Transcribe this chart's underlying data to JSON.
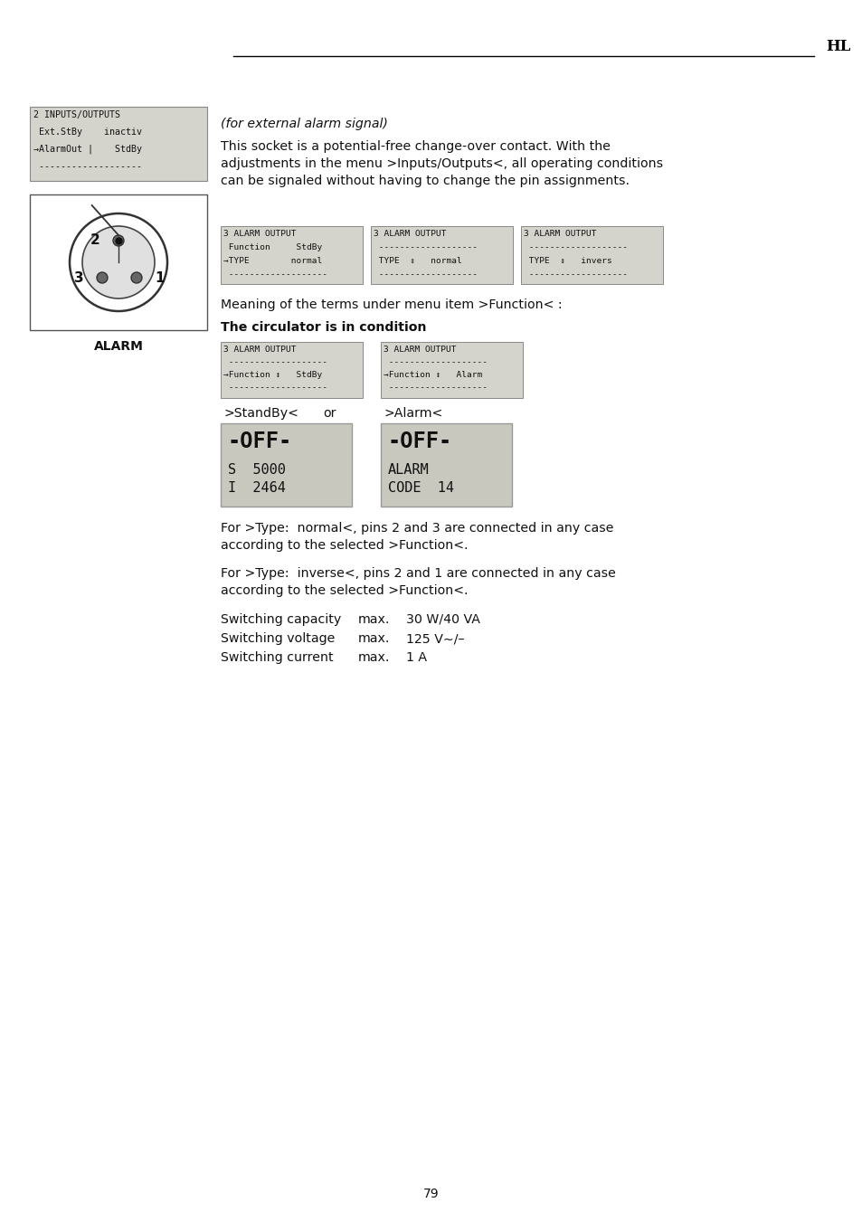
{
  "page_number": "79",
  "header_text": "HL",
  "lcd_box1_lines": [
    "2 INPUTS/OUTPUTS",
    " Ext.StBy    inactiv",
    "→AlarmOut |    StdBy",
    " -------------------"
  ],
  "alarm_label": "ALARM",
  "para_italic": "(for external alarm signal)",
  "para1_lines": [
    "This socket is a potential-free change-over contact. With the",
    "adjustments in the menu >Inputs/Outputs<, all operating conditions",
    "can be signaled without having to change the pin assignments."
  ],
  "alarm_output_boxes": [
    [
      "3 ALARM OUTPUT",
      " Function     StdBy",
      "→TYPE        normal",
      " -------------------"
    ],
    [
      "3 ALARM OUTPUT",
      " -------------------",
      " TYPE  ↕   normal",
      " -------------------"
    ],
    [
      "3 ALARM OUTPUT",
      " -------------------",
      " TYPE  ↕   invers",
      " -------------------"
    ]
  ],
  "meaning_text": "Meaning of the terms under menu item >Function< :",
  "condition_text": "The circulator is in condition",
  "condition_boxes": [
    [
      "3 ALARM OUTPUT",
      " -------------------",
      "→Function ↕   StdBy",
      " -------------------"
    ],
    [
      "3 ALARM OUTPUT",
      " -------------------",
      "→Function ↕   Alarm",
      " -------------------"
    ]
  ],
  "standby_label": ">StandBy<",
  "or_label": "or",
  "alarm_label2": ">Alarm<",
  "lcd_display1_lines": [
    "-OFF-",
    "S  5000",
    "I  2464"
  ],
  "lcd_display2_lines": [
    "-OFF-",
    "ALARM",
    "CODE  14"
  ],
  "para_type_normal_lines": [
    "For >Type:  normal<, pins 2 and 3 are connected in any case",
    "according to the selected >Function<."
  ],
  "para_type_inverse_lines": [
    "For >Type:  inverse<, pins 2 and 1 are connected in any case",
    "according to the selected >Function<."
  ],
  "specs": [
    [
      "Switching capacity",
      "max.",
      "30 W/40 VA"
    ],
    [
      "Switching voltage",
      "max.",
      "125 V∼/–"
    ],
    [
      "Switching current",
      "max.",
      "1 A"
    ]
  ],
  "bg_color": "#ffffff",
  "text_color": "#000000",
  "lcd_bg": "#d4d4cc",
  "display_bg": "#c8c8be"
}
